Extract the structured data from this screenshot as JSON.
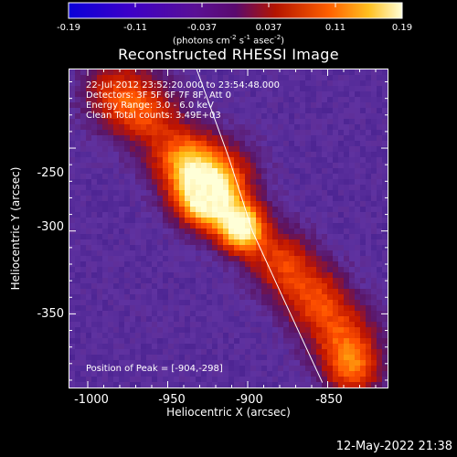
{
  "colorbar": {
    "tick_labels": [
      "-0.19",
      "-0.11",
      "-0.037",
      "0.037",
      "0.11",
      "0.19"
    ],
    "units_text": "(photons cm",
    "units_exp1": "-2",
    "units_mid1": " s",
    "units_exp2": "-1",
    "units_mid2": " asec",
    "units_exp3": "-2",
    "units_end": ")"
  },
  "plot": {
    "title": "Reconstructed RHESSI Image",
    "xlabel": "Heliocentric X (arcsec)",
    "ylabel": "Heliocentric Y (arcsec)",
    "x_ticks": [
      "-1000",
      "-950",
      "-900",
      "-850"
    ],
    "y_ticks": [
      "-250",
      "-300",
      "-350"
    ],
    "annotations": {
      "time_range": "22-Jul-2012 23:52:20.000 to 23:54:48.000",
      "detectors": "Detectors: 3F 5F 6F 7F 8F, Att 0",
      "energy": "Energy Range: 3.0 - 6.0 keV",
      "method": "Clean     Total counts: 3.49E+03"
    },
    "peak_text": "Position of Peak = [-904,-298]"
  },
  "timestamp": "12-May-2022 21:38",
  "chart_data": {
    "type": "heatmap",
    "title": "Reconstructed RHESSI Image",
    "xlabel": "Heliocentric X (arcsec)",
    "ylabel": "Heliocentric Y (arcsec)",
    "xlim": [
      -1012,
      -812
    ],
    "ylim": [
      -395,
      -202
    ],
    "colorbar_range": [
      -0.19,
      0.19
    ],
    "peak": {
      "x": -904,
      "y": -298
    },
    "sources": [
      {
        "x": -904,
        "y": -298,
        "amplitude": 1.0,
        "sigma": 10
      },
      {
        "x": -927,
        "y": -281,
        "amplitude": 0.8,
        "sigma": 12
      },
      {
        "x": -940,
        "y": -258,
        "amplitude": 0.6,
        "sigma": 14
      },
      {
        "x": -918,
        "y": -270,
        "amplitude": 0.55,
        "sigma": 16
      },
      {
        "x": -965,
        "y": -228,
        "amplitude": 0.45,
        "sigma": 15
      },
      {
        "x": -880,
        "y": -318,
        "amplitude": 0.45,
        "sigma": 14
      },
      {
        "x": -858,
        "y": -340,
        "amplitude": 0.45,
        "sigma": 14
      },
      {
        "x": -840,
        "y": -365,
        "amplitude": 0.45,
        "sigma": 15
      },
      {
        "x": -833,
        "y": -385,
        "amplitude": 0.45,
        "sigma": 12
      },
      {
        "x": -985,
        "y": -215,
        "amplitude": 0.35,
        "sigma": 14
      }
    ],
    "limb_curve": [
      [
        -932,
        -202
      ],
      [
        -912,
        -255
      ],
      [
        -897,
        -300
      ],
      [
        -878,
        -340
      ],
      [
        -853,
        -392
      ]
    ]
  }
}
